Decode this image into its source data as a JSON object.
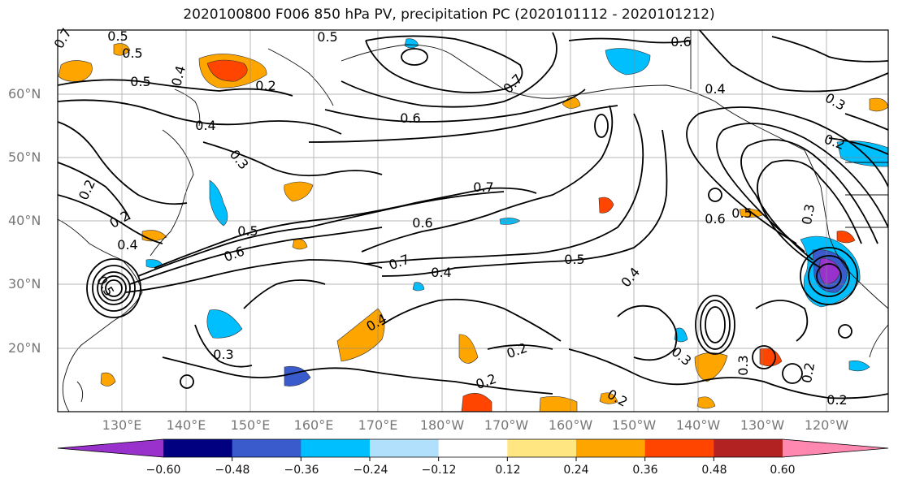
{
  "title": "2020100800 F006 850 hPa PV, precipitation PC (2020101112 - 2020101212)",
  "lat_labels": [
    "60°N",
    "50°N",
    "40°N",
    "30°N",
    "20°N"
  ],
  "lon_labels": [
    "130°E",
    "140°E",
    "150°E",
    "160°E",
    "170°E",
    "180°W",
    "170°W",
    "160°W",
    "150°W",
    "140°W",
    "130°W",
    "120°W"
  ],
  "contour_labels": [
    "0.7",
    "0.5",
    "0.5",
    "0.4",
    "0.2",
    "0.5",
    "0.6",
    "0.7",
    "0.5",
    "0.6",
    "0.4",
    "0.4",
    "0.3",
    "0.2",
    "0.4",
    "0.2",
    "0.5",
    "0.6",
    "0.7",
    "0.6",
    "0.7",
    "0.4",
    "0.5",
    "0.4",
    "0.6",
    "0.5",
    "0.5",
    "0.3",
    "0.3",
    "0.2",
    "0.4",
    "0.2",
    "0.2",
    "0.2",
    "0.3",
    "0.3",
    "0.2",
    "0.3",
    "0.2"
  ],
  "colorbar": {
    "tick_labels": [
      "−0.60",
      "−0.48",
      "−0.36",
      "−0.24",
      "−0.12",
      "0.12",
      "0.24",
      "0.36",
      "0.48",
      "0.60"
    ],
    "colors": [
      "#9932cc",
      "#000080",
      "#3a5bcb",
      "#00bfff",
      "#b0e0fc",
      "#ffffff",
      "#ffe680",
      "#ffa500",
      "#ff4500",
      "#b22222",
      "#ff88b0"
    ],
    "levels": [
      -0.6,
      -0.48,
      -0.36,
      -0.24,
      -0.12,
      0.12,
      0.24,
      0.36,
      0.48,
      0.6
    ]
  },
  "map": {
    "projection": "equidistant cylindrical",
    "lon_range": [
      "120°E",
      "110°W"
    ],
    "lat_range": [
      10,
      70
    ],
    "gridlines": true
  }
}
